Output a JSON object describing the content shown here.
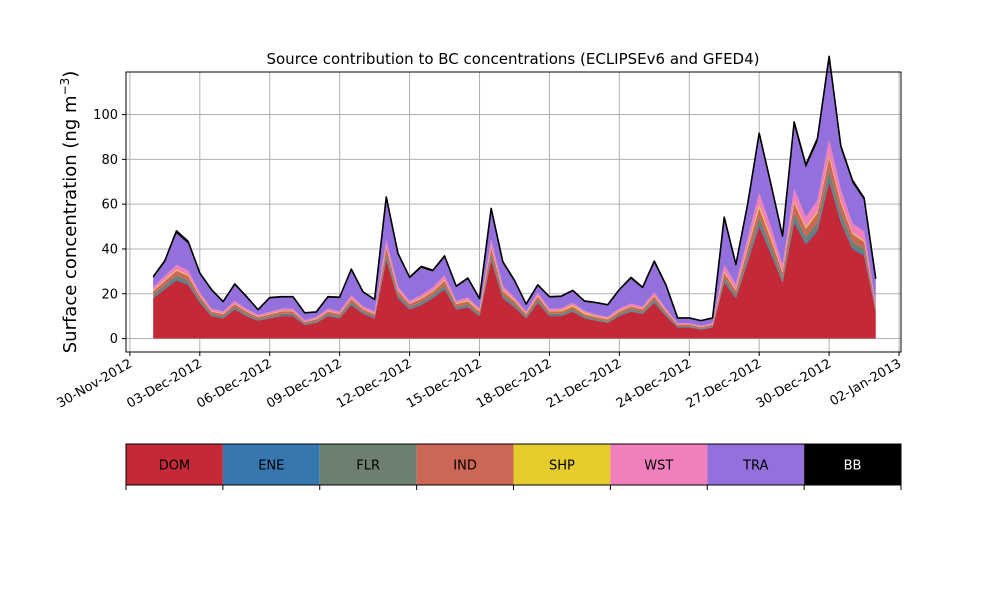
{
  "chart_data": {
    "type": "area",
    "stacked": true,
    "title": "Source contribution to BC concentrations (ECLIPSEv6 and GFED4)",
    "xlabel": "",
    "ylabel_main": "Surface concentration (ng m",
    "ylabel_sup": "−3",
    "ylabel_close": ")",
    "ylim": [
      -6,
      119
    ],
    "yticks": [
      0,
      20,
      40,
      60,
      80,
      100
    ],
    "x_axis": {
      "start": "2012-11-29T20:00",
      "end": "2013-01-02T02:00",
      "tick_dates": [
        "2012-11-30",
        "2012-12-03",
        "2012-12-06",
        "2012-12-09",
        "2012-12-12",
        "2012-12-15",
        "2012-12-18",
        "2012-12-21",
        "2012-12-24",
        "2012-12-27",
        "2012-12-30",
        "2013-01-02"
      ],
      "tick_labels": [
        "30-Nov-2012",
        "03-Dec-2012",
        "06-Dec-2012",
        "09-Dec-2012",
        "12-Dec-2012",
        "15-Dec-2012",
        "18-Dec-2012",
        "21-Dec-2012",
        "24-Dec-2012",
        "27-Dec-2012",
        "30-Dec-2012",
        "02-Jan-2013"
      ]
    },
    "grid": true,
    "legend_placement": "below",
    "x": [
      "2012-12-01T00:00",
      "2012-12-01T12:00",
      "2012-12-02T00:00",
      "2012-12-02T12:00",
      "2012-12-03T00:00",
      "2012-12-03T12:00",
      "2012-12-04T00:00",
      "2012-12-04T12:00",
      "2012-12-05T00:00",
      "2012-12-05T12:00",
      "2012-12-06T00:00",
      "2012-12-06T12:00",
      "2012-12-07T00:00",
      "2012-12-07T12:00",
      "2012-12-08T00:00",
      "2012-12-08T12:00",
      "2012-12-09T00:00",
      "2012-12-09T12:00",
      "2012-12-10T00:00",
      "2012-12-10T12:00",
      "2012-12-11T00:00",
      "2012-12-11T12:00",
      "2012-12-12T00:00",
      "2012-12-12T12:00",
      "2012-12-13T00:00",
      "2012-12-13T12:00",
      "2012-12-14T00:00",
      "2012-12-14T12:00",
      "2012-12-15T00:00",
      "2012-12-15T12:00",
      "2012-12-16T00:00",
      "2012-12-16T12:00",
      "2012-12-17T00:00",
      "2012-12-17T12:00",
      "2012-12-18T00:00",
      "2012-12-18T12:00",
      "2012-12-19T00:00",
      "2012-12-19T12:00",
      "2012-12-20T00:00",
      "2012-12-20T12:00",
      "2012-12-21T00:00",
      "2012-12-21T12:00",
      "2012-12-22T00:00",
      "2012-12-22T12:00",
      "2012-12-23T00:00",
      "2012-12-23T12:00",
      "2012-12-24T00:00",
      "2012-12-24T12:00",
      "2012-12-25T00:00",
      "2012-12-25T12:00",
      "2012-12-26T00:00",
      "2012-12-26T12:00",
      "2012-12-27T00:00",
      "2012-12-27T12:00",
      "2012-12-28T00:00",
      "2012-12-28T12:00",
      "2012-12-29T00:00",
      "2012-12-29T12:00",
      "2012-12-30T00:00",
      "2012-12-30T12:00",
      "2012-12-31T00:00",
      "2012-12-31T12:00",
      "2013-01-01T00:00"
    ],
    "series": [
      {
        "name": "DOM",
        "color": "#c42938",
        "values": [
          18,
          22,
          26,
          24,
          16,
          10,
          9,
          13,
          10,
          8,
          9,
          10,
          10,
          6,
          7,
          10,
          9,
          15,
          11,
          9,
          35,
          18,
          13,
          15,
          18,
          22,
          13,
          14,
          10,
          35,
          18,
          14,
          9,
          16,
          10,
          10,
          12,
          9,
          8,
          7,
          10,
          12,
          11,
          16,
          10,
          5,
          5,
          4,
          5,
          25,
          18,
          34,
          50,
          38,
          25,
          52,
          42,
          48,
          70,
          52,
          40,
          37,
          12
        ]
      },
      {
        "name": "ENE",
        "color": "#3677b0",
        "values": [
          0.4,
          0.5,
          0.6,
          0.5,
          0.4,
          0.3,
          0.3,
          0.3,
          0.3,
          0.2,
          0.2,
          0.3,
          0.3,
          0.2,
          0.2,
          0.3,
          0.3,
          0.4,
          0.3,
          0.3,
          0.7,
          0.5,
          0.3,
          0.4,
          0.4,
          0.5,
          0.3,
          0.3,
          0.3,
          0.7,
          0.5,
          0.4,
          0.3,
          0.4,
          0.3,
          0.3,
          0.3,
          0.3,
          0.2,
          0.2,
          0.3,
          0.3,
          0.3,
          0.4,
          0.3,
          0.2,
          0.2,
          0.2,
          0.2,
          0.5,
          0.5,
          0.8,
          1.0,
          0.8,
          0.6,
          1.0,
          0.9,
          1.0,
          1.3,
          1.0,
          0.8,
          0.8,
          0.3
        ]
      },
      {
        "name": "FLR",
        "color": "#6d8070",
        "values": [
          1.2,
          1.4,
          1.6,
          1.5,
          1.1,
          0.8,
          0.7,
          0.9,
          0.8,
          0.6,
          0.7,
          0.8,
          0.8,
          0.5,
          0.6,
          0.8,
          0.7,
          1.0,
          0.8,
          0.7,
          2.0,
          1.2,
          0.9,
          1.0,
          1.1,
          1.4,
          0.9,
          1.0,
          0.8,
          2.0,
          1.2,
          1.0,
          0.7,
          1.1,
          0.8,
          0.8,
          0.9,
          0.7,
          0.6,
          0.6,
          0.8,
          0.9,
          0.8,
          1.1,
          0.8,
          0.4,
          0.4,
          0.4,
          0.4,
          1.6,
          1.3,
          2.2,
          3.0,
          2.4,
          1.7,
          3.2,
          2.6,
          3.0,
          4.0,
          3.2,
          2.5,
          2.3,
          0.9
        ]
      },
      {
        "name": "IND",
        "color": "#cc6655",
        "values": [
          1.5,
          1.8,
          2.1,
          2.0,
          1.4,
          1.0,
          0.9,
          1.2,
          1.0,
          0.8,
          0.9,
          1.0,
          1.0,
          0.7,
          0.8,
          1.0,
          0.9,
          1.3,
          1.0,
          0.9,
          2.8,
          1.6,
          1.2,
          1.4,
          1.5,
          1.9,
          1.2,
          1.3,
          1.0,
          2.8,
          1.6,
          1.3,
          0.9,
          1.4,
          1.0,
          1.0,
          1.1,
          0.9,
          0.8,
          0.8,
          1.0,
          1.1,
          1.0,
          1.4,
          1.0,
          0.6,
          0.6,
          0.5,
          0.6,
          2.2,
          1.7,
          3.0,
          4.2,
          3.2,
          2.2,
          4.3,
          3.5,
          4.0,
          5.5,
          4.3,
          3.3,
          3.1,
          1.2
        ]
      },
      {
        "name": "SHP",
        "color": "#e5cd2e",
        "values": [
          0.3,
          0.4,
          0.4,
          0.4,
          0.3,
          0.2,
          0.2,
          0.2,
          0.2,
          0.2,
          0.2,
          0.2,
          0.2,
          0.1,
          0.2,
          0.2,
          0.2,
          0.3,
          0.2,
          0.2,
          0.5,
          0.3,
          0.2,
          0.3,
          0.3,
          0.4,
          0.3,
          0.5,
          0.4,
          0.6,
          0.5,
          0.4,
          0.3,
          0.3,
          0.2,
          0.4,
          0.6,
          0.6,
          0.3,
          0.3,
          0.3,
          0.2,
          0.2,
          0.3,
          0.2,
          0.1,
          0.1,
          0.1,
          0.1,
          0.6,
          0.4,
          0.8,
          1.4,
          1.0,
          0.5,
          0.9,
          0.7,
          0.8,
          1.0,
          0.8,
          0.6,
          0.6,
          0.2
        ]
      },
      {
        "name": "WST",
        "color": "#f07fbc",
        "values": [
          1.6,
          1.9,
          2.2,
          2.0,
          1.5,
          1.1,
          1.0,
          1.2,
          1.0,
          0.8,
          0.9,
          1.0,
          1.0,
          0.7,
          0.8,
          1.0,
          0.9,
          1.3,
          1.1,
          1.0,
          3.0,
          1.7,
          1.2,
          1.4,
          1.6,
          2.0,
          1.2,
          1.3,
          1.0,
          3.0,
          1.7,
          1.3,
          0.9,
          1.4,
          1.0,
          1.0,
          1.1,
          0.9,
          0.8,
          0.8,
          1.0,
          1.1,
          1.0,
          1.5,
          1.0,
          0.6,
          0.6,
          0.5,
          0.6,
          3.0,
          2.5,
          4.0,
          5.5,
          4.5,
          3.0,
          5.5,
          4.5,
          5.0,
          7.0,
          5.5,
          4.3,
          4.0,
          1.5
        ]
      },
      {
        "name": "TRA",
        "color": "#9370db",
        "values": [
          4,
          6,
          14,
          12,
          8,
          8,
          4,
          7,
          5,
          2,
          6,
          5,
          5,
          3,
          2,
          5,
          6,
          11,
          6,
          5,
          18,
          14,
          10,
          12,
          7,
          8,
          6,
          8,
          4,
          13,
          10,
          7,
          3,
          3,
          5,
          5,
          5,
          4,
          5,
          5,
          8,
          11,
          8,
          13,
          10,
          2,
          2,
          2,
          2,
          20,
          8,
          14,
          25,
          18,
          12,
          28,
          22,
          26,
          35,
          18,
          18,
          14,
          10
        ]
      },
      {
        "name": "BB",
        "color": "#000000",
        "values": [
          0.6,
          0.8,
          1.2,
          1.0,
          0.6,
          0.5,
          0.4,
          0.6,
          0.5,
          0.3,
          0.4,
          0.4,
          0.4,
          0.3,
          0.3,
          0.4,
          0.5,
          0.7,
          0.5,
          0.4,
          1.2,
          0.8,
          0.6,
          0.7,
          0.6,
          0.7,
          0.5,
          0.6,
          0.4,
          1.0,
          0.8,
          0.6,
          0.3,
          0.4,
          0.4,
          0.4,
          0.5,
          0.4,
          0.4,
          0.4,
          0.5,
          0.7,
          0.6,
          0.9,
          0.6,
          0.3,
          0.3,
          0.3,
          0.3,
          1.3,
          0.7,
          1.0,
          1.6,
          1.2,
          0.8,
          1.8,
          1.4,
          1.6,
          2.2,
          1.3,
          1.2,
          1.0,
          0.6
        ]
      }
    ]
  }
}
